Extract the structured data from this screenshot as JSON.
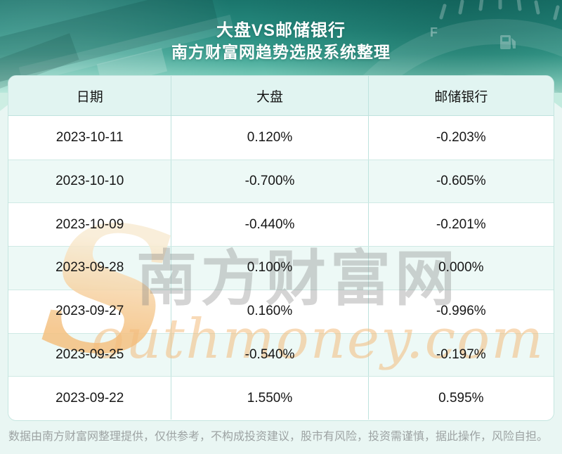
{
  "banner": {
    "title": "大盘VS邮储银行",
    "subtitle": "南方财富网趋势选股系统整理"
  },
  "table": {
    "columns": [
      "日期",
      "大盘",
      "邮储银行"
    ],
    "rows": [
      [
        "2023-10-11",
        "0.120%",
        "-0.203%"
      ],
      [
        "2023-10-10",
        "-0.700%",
        "-0.605%"
      ],
      [
        "2023-10-09",
        "-0.440%",
        "-0.201%"
      ],
      [
        "2023-09-28",
        "0.100%",
        "0.000%"
      ],
      [
        "2023-09-27",
        "0.160%",
        "-0.996%"
      ],
      [
        "2023-09-25",
        "-0.540%",
        "-0.197%"
      ],
      [
        "2023-09-22",
        "1.550%",
        "0.595%"
      ]
    ]
  },
  "watermark": {
    "swoosh_letter": "S",
    "brand_cn": "南方财富网",
    "brand_en": "outhmoney.com"
  },
  "footer": {
    "disclaimer": "数据由南方财富网整理提供，仅供参考，不构成投资建议，股市有风险，投资需谨慎，据此操作，风险自担。"
  },
  "colors": {
    "banner_teal_top": "#1a756c",
    "banner_teal_bottom": "#abe3d4",
    "table_header_bg": "#e1f4f1",
    "row_alt_bg": "#edf9f6",
    "grid_line": "#bfe3de",
    "page_bg": "#e9f6f3",
    "text_primary": "#161616",
    "footer_gray": "#9da3a3",
    "watermark_orange": "#f3bb7b",
    "watermark_gray": "#7d7d7d"
  },
  "chart_data": {
    "type": "table",
    "title": "大盘VS邮储银行",
    "subtitle": "南方财富网趋势选股系统整理",
    "columns": [
      "日期",
      "大盘",
      "邮储银行"
    ],
    "rows": [
      {
        "日期": "2023-10-11",
        "大盘": "0.120%",
        "邮储银行": "-0.203%"
      },
      {
        "日期": "2023-10-10",
        "大盘": "-0.700%",
        "邮储银行": "-0.605%"
      },
      {
        "日期": "2023-10-09",
        "大盘": "-0.440%",
        "邮储银行": "-0.201%"
      },
      {
        "日期": "2023-09-28",
        "大盘": "0.100%",
        "邮储银行": "0.000%"
      },
      {
        "日期": "2023-09-27",
        "大盘": "0.160%",
        "邮储银行": "-0.996%"
      },
      {
        "日期": "2023-09-25",
        "大盘": "-0.540%",
        "邮储银行": "-0.197%"
      },
      {
        "日期": "2023-09-22",
        "大盘": "1.550%",
        "邮储银行": "0.595%"
      }
    ]
  }
}
